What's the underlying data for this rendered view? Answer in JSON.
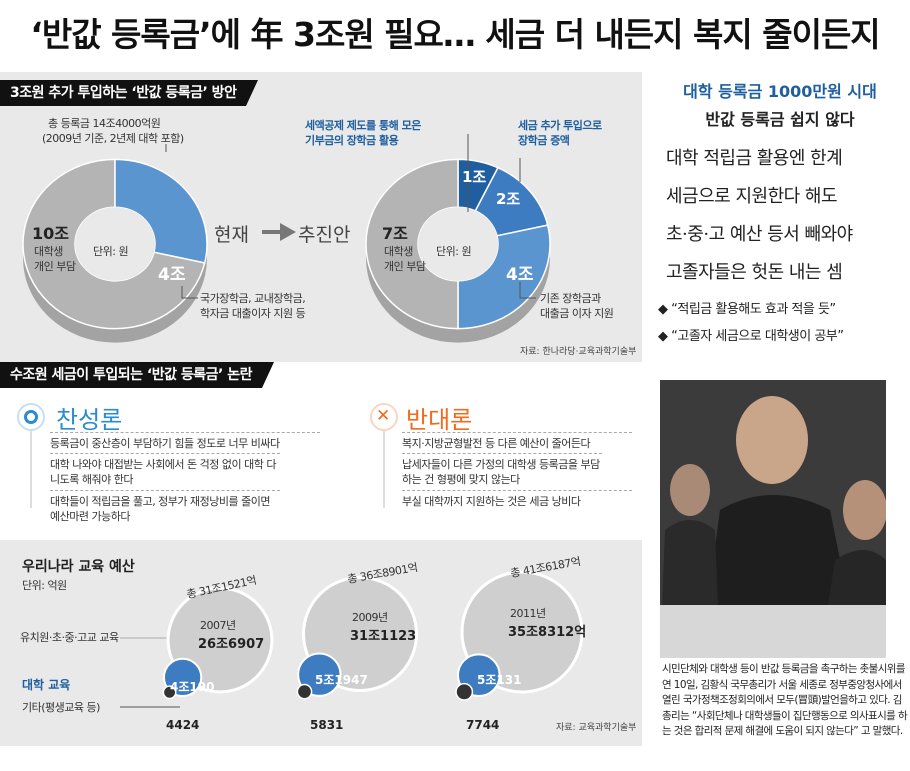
{
  "headline": "‘반값 등록금’에 年 3조원 필요… 세금 더 내든지 복지 줄이든지",
  "section1": {
    "title": "3조원 추가 투입하는 ‘반값 등록금’ 방안",
    "total_label": "총 등록금 14조4000억원",
    "total_note": "(2009년 기준, 2년제 대학 포함)",
    "unit": "단위: 원",
    "current_label": "현재",
    "plan_label": "추진안",
    "current": {
      "student_value": "10조",
      "student_label_1": "대학생",
      "student_label_2": "개인 부담",
      "aid_value": "4조",
      "aid_note_1": "국가장학금, 교내장학금,",
      "aid_note_2": "학자금 대출이자 지원 등"
    },
    "plan": {
      "student_value": "7조",
      "student_label_1": "대학생",
      "student_label_2": "개인 부담",
      "tax_credit_value": "1조",
      "tax_credit_note_1": "세액공제 제도를 통해 모은",
      "tax_credit_note_2": "기부금의 장학금 활용",
      "tax_value": "2조",
      "tax_note_1": "세금 추가 투입으로",
      "tax_note_2": "장학금 증액",
      "aid_value": "4조",
      "aid_note_1": "기존 장학금과",
      "aid_note_2": "대출금 이자 지원"
    },
    "source": "자료: 한나라당·교육과학기술부",
    "chart_data": [
      {
        "type": "pie",
        "title": "현재",
        "categories": [
          "대학생 개인 부담",
          "국가장학금, 교내장학금, 학자금 대출이자 지원 등"
        ],
        "values": [
          10,
          4
        ],
        "unit": "조원"
      },
      {
        "type": "pie",
        "title": "추진안",
        "categories": [
          "대학생 개인 부담",
          "기존 장학금과 대출금 이자 지원",
          "세금 추가 투입으로 장학금 증액",
          "세액공제 제도를 통해 모은 기부금의 장학금 활용"
        ],
        "values": [
          7,
          4,
          2,
          1
        ],
        "unit": "조원"
      }
    ]
  },
  "section2": {
    "title": "수조원 세금이 투입되는 ‘반값 등록금’ 논란",
    "pro": {
      "title": "찬성론",
      "items": [
        "등록금이 중산층이 부담하기 힘들 정도로 너무 비싸다",
        "대학 나와야 대접받는 사회에서 돈 걱정 없이 대학 다니도록 해줘야 한다",
        "대학들이 적립금을 풀고, 정부가 재정낭비를 줄이면 예산마련 가능하다"
      ]
    },
    "con": {
      "title": "반대론",
      "items": [
        "복지·지방균형발전 등 다른 예산이 줄어든다",
        "납세자들이 다른 가정의 대학생 등록금을 부담하는 건 형평에 맞지 않는다",
        "부실 대학까지 지원하는 것은 세금 낭비다"
      ]
    }
  },
  "section3": {
    "title": "우리나라 교육 예산",
    "unit": "단위: 억원",
    "row_k12": "유치원·초·중·고교 교육",
    "row_univ": "대학 교육",
    "row_other": "기타(평생교육 등)",
    "source": "자료: 교육과학기술부",
    "years": [
      {
        "total": "총 31조1521억",
        "year": "2007년",
        "k12": "26조6907",
        "univ": "4조190",
        "other": "4424"
      },
      {
        "total": "총 36조8901억",
        "year": "2009년",
        "k12": "31조1123",
        "univ": "5조1947",
        "other": "5831"
      },
      {
        "total": "총 41조6187억",
        "year": "2011년",
        "k12": "35조8312억",
        "univ": "5조131",
        "other": "7744"
      }
    ],
    "chart_data": {
      "type": "pie",
      "title": "우리나라 교육 예산",
      "unit": "억원",
      "categories": [
        "2007년",
        "2009년",
        "2011년"
      ],
      "series": [
        {
          "name": "유치원·초·중·고교 교육",
          "values": [
            266907,
            311123,
            358312
          ]
        },
        {
          "name": "대학 교육",
          "values": [
            40190,
            51947,
            50131
          ]
        },
        {
          "name": "기타(평생교육 등)",
          "values": [
            4424,
            5831,
            7744
          ]
        }
      ],
      "totals": [
        311521,
        368901,
        416187
      ]
    }
  },
  "sidebar": {
    "title": "대학 등록금 1000만원 시대",
    "subtitle": "반값 등록금 쉽지 않다",
    "lines": [
      "대학 적립금 활용엔 한계",
      "세금으로 지원한다 해도",
      "초·중·고 예산 등서 빼와야",
      "고졸자들은 헛돈 내는 셈"
    ],
    "bullets": [
      "“적립금 활용해도 효과 적을 듯”",
      "“고졸자 세금으로 대학생이 공부”"
    ]
  },
  "photo_caption": "시민단체와 대학생 등이 반값 등록금을 촉구하는 촛불시위를 연 10일, 김황식 국무총리가 서울 세종로 정부중앙청사에서 열린 국가정책조정회의에서 모두(冒頭)발언을하고 있다. 김 총리는 “사회단체나 대학생들이 집단행동으로 의사표시를 하는 것은 합리적 문제 해결에 도움이 되지 않는다” 고 말했다.",
  "colors": {
    "accent_blue": "#1f5fa0",
    "mid_blue": "#3d7cc0",
    "light_blue": "#5b95cf",
    "gray": "#b4b4b4",
    "panel_bg": "#e9e9e9",
    "pro_blue": "#2a8bd1",
    "con_orange": "#f26a1b"
  }
}
